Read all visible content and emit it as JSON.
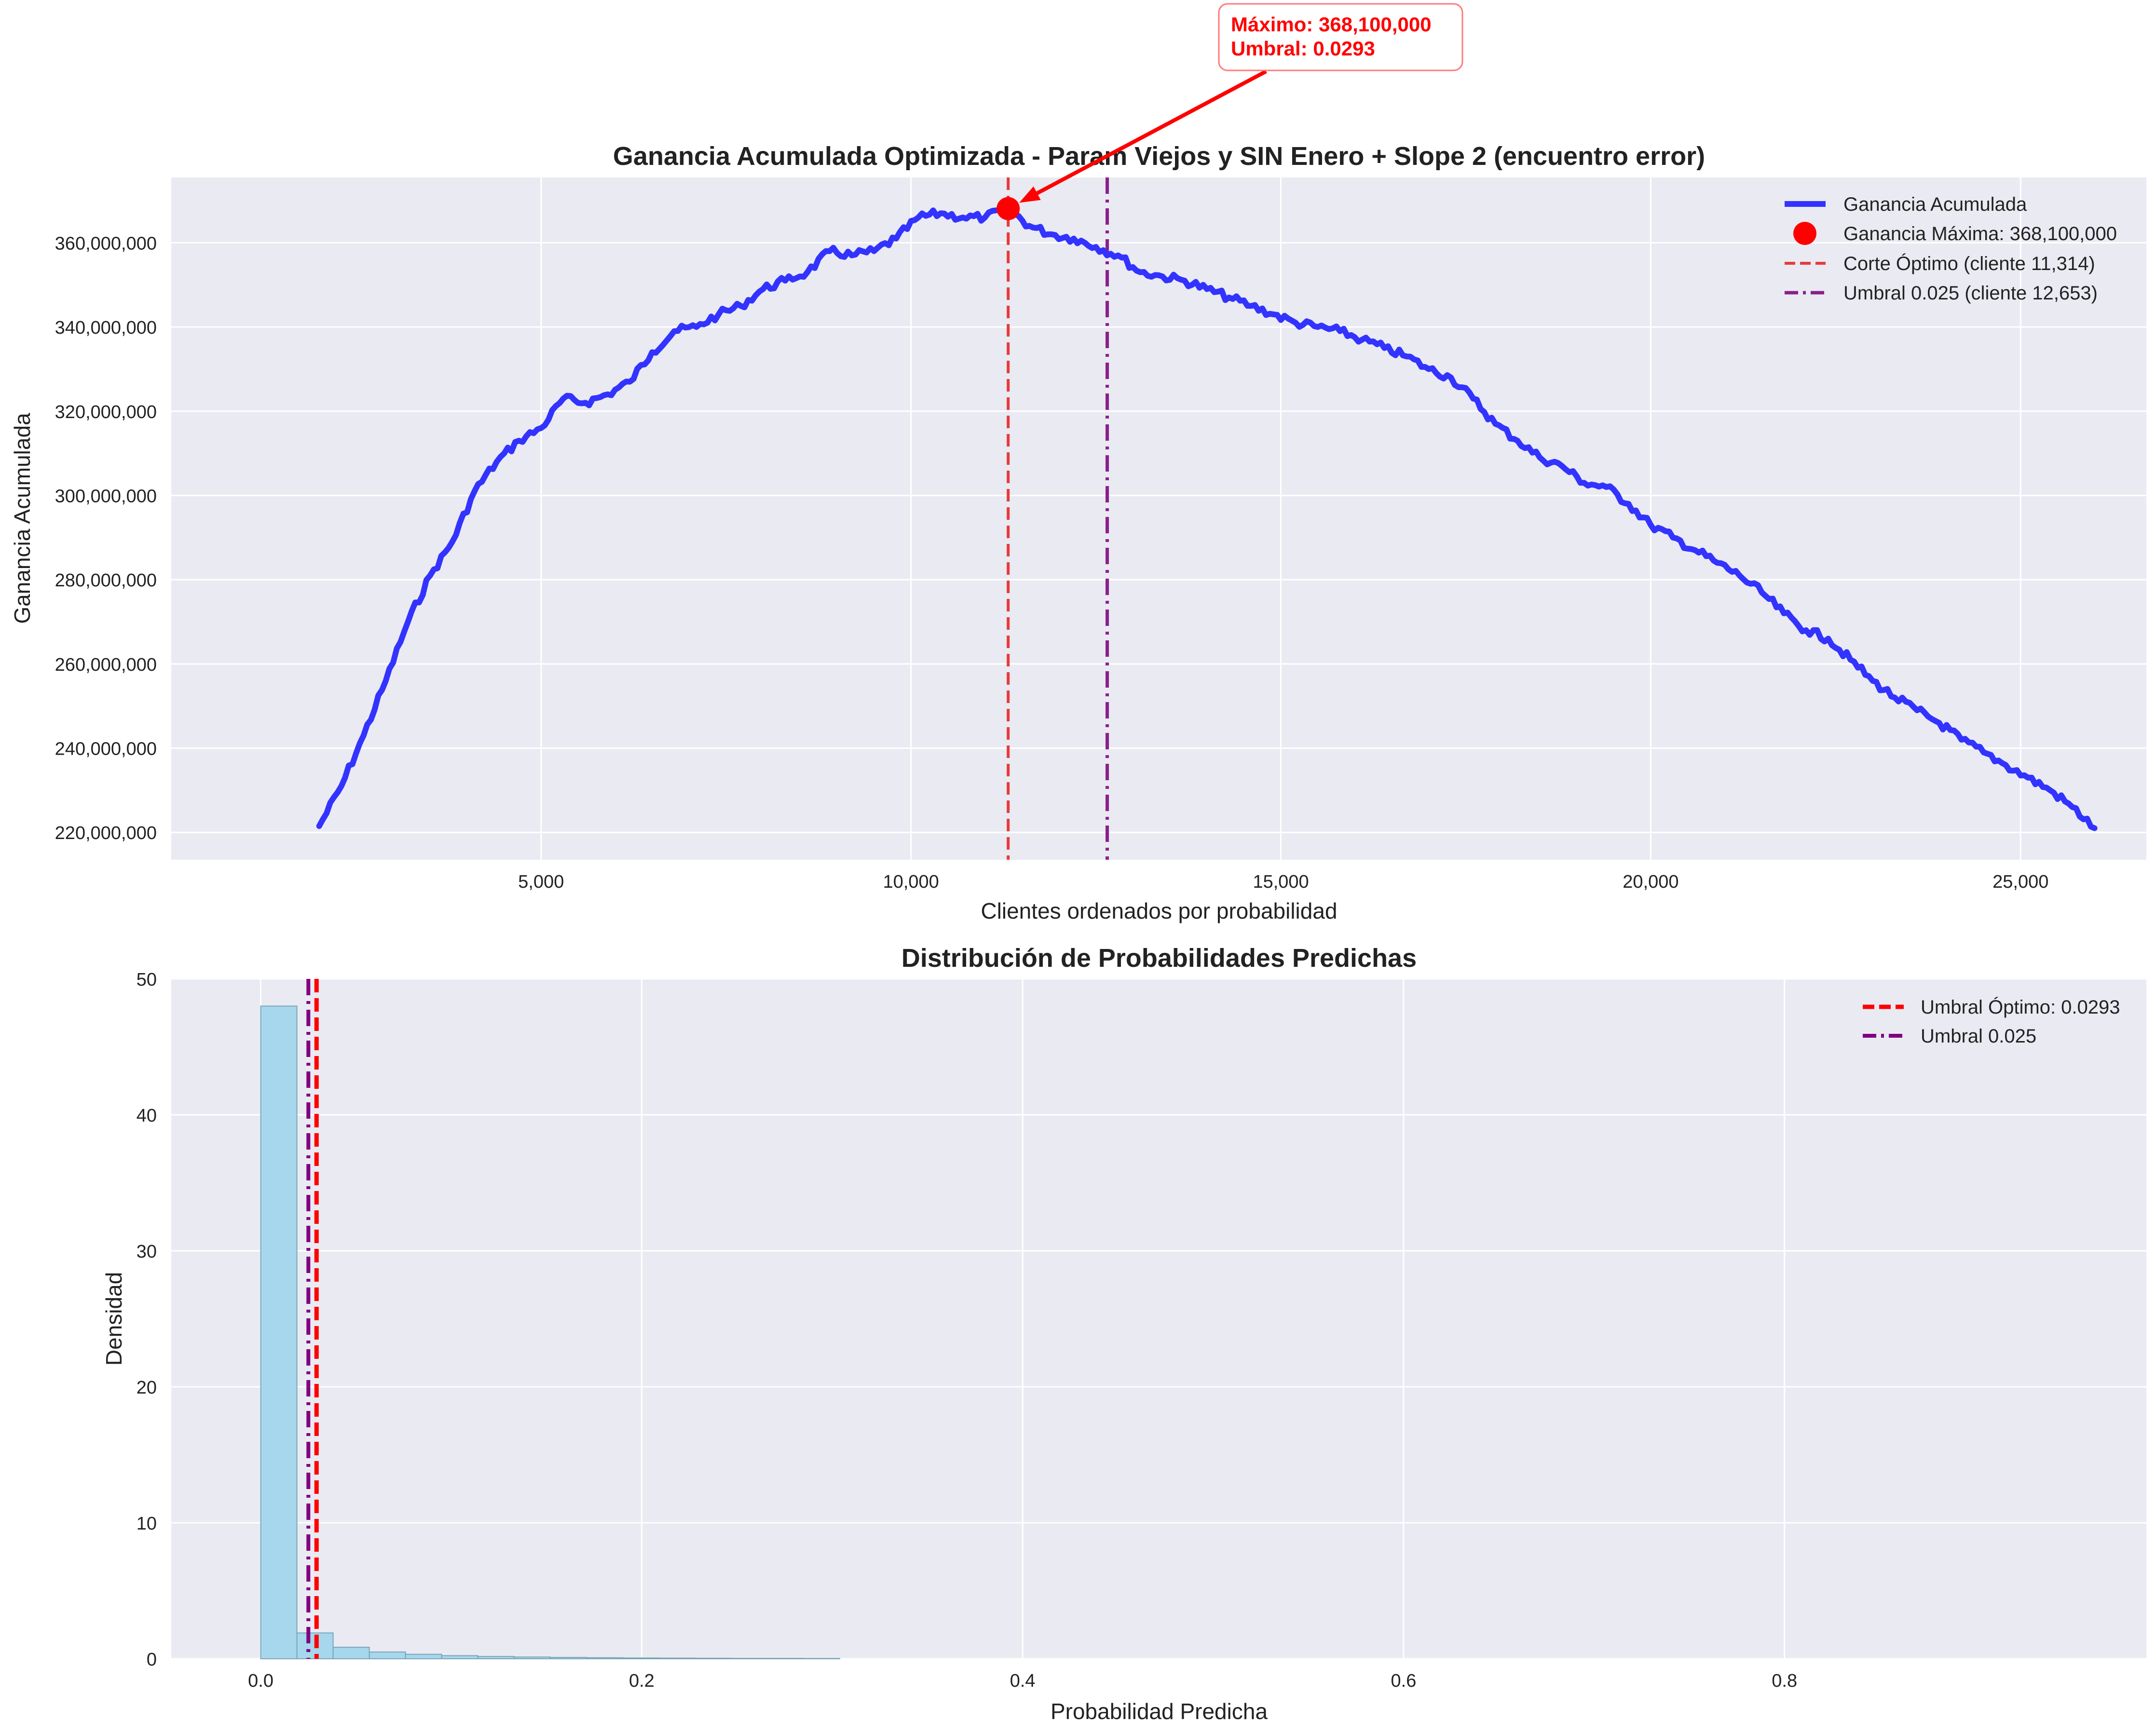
{
  "chart_data": [
    {
      "type": "line",
      "title": "Ganancia Acumulada Optimizada - Param Viejos y SIN Enero + Slope 2 (encuentro error)",
      "xlabel": "Clientes ordenados por probabilidad",
      "ylabel": "Ganancia Acumulada",
      "xlim": [
        0,
        26700
      ],
      "ylim": [
        213500000,
        375500000
      ],
      "x_ticks": [
        5000,
        10000,
        15000,
        20000,
        25000
      ],
      "x_tick_labels": [
        "5,000",
        "10,000",
        "15,000",
        "20,000",
        "25,000"
      ],
      "y_ticks": [
        220000000,
        240000000,
        260000000,
        280000000,
        300000000,
        320000000,
        340000000,
        360000000
      ],
      "y_tick_labels": [
        "220,000,000",
        "240,000,000",
        "260,000,000",
        "280,000,000",
        "300,000,000",
        "320,000,000",
        "340,000,000",
        "360,000,000"
      ],
      "grid": true,
      "legend_position": "top-right",
      "colors": {
        "line": "#3333ff",
        "max_point": "#ff0000",
        "optimal_cut": "#e83a3a",
        "threshold": "#8b1e8b",
        "background": "#eaeaf2",
        "grid": "#ffffff"
      },
      "series": [
        {
          "name": "Ganancia Acumulada",
          "x": [
            2000,
            2300,
            2600,
            2900,
            3200,
            3500,
            3800,
            4100,
            4400,
            4700,
            5000,
            5300,
            5600,
            5900,
            6200,
            6500,
            6800,
            7100,
            7400,
            7700,
            8000,
            8300,
            8600,
            8900,
            9200,
            9500,
            9800,
            10100,
            10400,
            10700,
            11000,
            11314,
            11600,
            11900,
            12200,
            12500,
            12800,
            13100,
            13400,
            13700,
            14000,
            14300,
            14600,
            14900,
            15200,
            15500,
            15800,
            16100,
            16400,
            16700,
            17000,
            17300,
            17600,
            17900,
            18200,
            18500,
            18800,
            19100,
            19400,
            19700,
            20000,
            20300,
            20600,
            20900,
            21200,
            21500,
            21800,
            22100,
            22400,
            22700,
            23000,
            23300,
            23600,
            23900,
            24200,
            24500,
            24800,
            25100,
            25400,
            25700,
            26000
          ],
          "y": [
            221500000,
            231000000,
            243000000,
            256000000,
            270000000,
            281000000,
            289000000,
            301000000,
            308000000,
            313000000,
            316000000,
            323000000,
            322000000,
            324000000,
            327000000,
            334000000,
            339000000,
            340000000,
            343000000,
            345000000,
            349000000,
            351000000,
            353000000,
            358000000,
            357000000,
            358000000,
            361000000,
            366000000,
            367000000,
            366000000,
            366000000,
            368100000,
            364000000,
            362000000,
            361000000,
            359000000,
            357000000,
            353000000,
            352000000,
            351000000,
            349000000,
            347000000,
            345000000,
            343000000,
            341000000,
            340000000,
            339000000,
            337000000,
            335000000,
            333000000,
            330000000,
            328000000,
            323000000,
            317000000,
            313000000,
            309000000,
            307000000,
            303000000,
            302000000,
            298000000,
            293000000,
            290000000,
            287000000,
            284000000,
            281000000,
            277000000,
            272000000,
            268000000,
            266000000,
            261000000,
            256000000,
            252000000,
            249000000,
            246000000,
            242000000,
            239000000,
            236000000,
            233000000,
            230000000,
            226000000,
            221000000
          ]
        }
      ],
      "max_point": {
        "x": 11314,
        "y": 368100000,
        "label": "Ganancia Máxima: 368,100,000"
      },
      "vlines": [
        {
          "x": 11314,
          "style": "dashed",
          "label": "Corte Óptimo (cliente 11,314)"
        },
        {
          "x": 12653,
          "style": "dashdot",
          "label": "Umbral 0.025 (cliente 12,653)"
        }
      ],
      "annotation": {
        "line1": "Máximo: 368,100,000",
        "line2": "Umbral: 0.0293",
        "x": 11314,
        "y": 368100000
      }
    },
    {
      "type": "bar",
      "title": "Distribución de Probabilidades Predichas",
      "xlabel": "Probabilidad Predicha",
      "ylabel": "Densidad",
      "xlim": [
        -0.047,
        0.99
      ],
      "ylim": [
        0,
        50
      ],
      "x_ticks": [
        0.0,
        0.2,
        0.4,
        0.6,
        0.8
      ],
      "x_tick_labels": [
        "0.0",
        "0.2",
        "0.4",
        "0.6",
        "0.8"
      ],
      "y_ticks": [
        0,
        10,
        20,
        30,
        40,
        50
      ],
      "y_tick_labels": [
        "0",
        "10",
        "20",
        "30",
        "40",
        "50"
      ],
      "grid": true,
      "legend_position": "top-right",
      "colors": {
        "bars": "#a6d7ec",
        "bar_edge": "#7aa6b8",
        "optimal": "#ff0000",
        "threshold": "#800080"
      },
      "bin_edges": [
        0.0,
        0.019,
        0.038,
        0.057,
        0.076,
        0.095,
        0.114,
        0.133,
        0.152,
        0.171,
        0.19,
        0.209,
        0.228,
        0.247,
        0.266,
        0.285,
        0.304
      ],
      "values": [
        48.0,
        1.9,
        0.85,
        0.5,
        0.33,
        0.23,
        0.17,
        0.13,
        0.1,
        0.08,
        0.06,
        0.05,
        0.04,
        0.03,
        0.03,
        0.02
      ],
      "vlines": [
        {
          "x": 0.0293,
          "style": "dashed",
          "label": "Umbral Óptimo: 0.0293"
        },
        {
          "x": 0.025,
          "style": "dashdot",
          "label": "Umbral 0.025"
        }
      ]
    }
  ]
}
